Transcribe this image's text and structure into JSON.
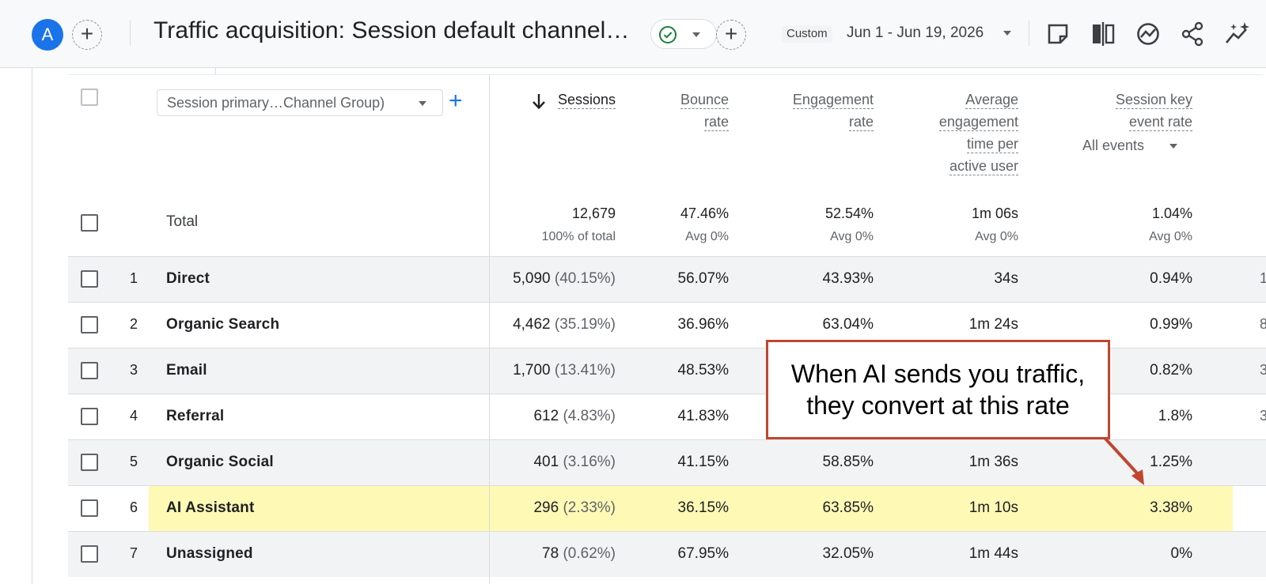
{
  "topbar": {
    "avatar_letter": "A",
    "add_comparison": "+",
    "report_title": "Traffic acquisition: Session default channel…",
    "add_button": "+",
    "date_chip": "Custom",
    "date_range": "Jun 1 - Jun 19, 2026"
  },
  "table": {
    "dimension_select": "Session primary…Channel Group)",
    "add_dimension": "+",
    "all_events": "All events",
    "columns": [
      {
        "lines": [
          "Sessions"
        ]
      },
      {
        "lines": [
          "Bounce",
          "rate"
        ]
      },
      {
        "lines": [
          "Engagement",
          "rate"
        ]
      },
      {
        "lines": [
          "Average",
          "engagement",
          "time per",
          "active user"
        ]
      },
      {
        "lines": [
          "Session key",
          "event rate"
        ]
      }
    ],
    "total": {
      "label": "Total",
      "values": [
        "12,679",
        "47.46%",
        "52.54%",
        "1m 06s",
        "1.04%"
      ],
      "subs": [
        "100% of total",
        "Avg 0%",
        "Avg 0%",
        "Avg 0%",
        "Avg 0%"
      ]
    },
    "rows": [
      {
        "num": "1",
        "channel": "Direct",
        "sessions": "5,090",
        "sessions_pct": "(40.15%)",
        "bounce": "56.07%",
        "engagement": "43.93%",
        "avg_time": "34s",
        "key_rate": "0.94%",
        "edge": "1"
      },
      {
        "num": "2",
        "channel": "Organic Search",
        "sessions": "4,462",
        "sessions_pct": "(35.19%)",
        "bounce": "36.96%",
        "engagement": "63.04%",
        "avg_time": "1m 24s",
        "key_rate": "0.99%",
        "edge": "8"
      },
      {
        "num": "3",
        "channel": "Email",
        "sessions": "1,700",
        "sessions_pct": "(13.41%)",
        "bounce": "48.53%",
        "engagement": "",
        "avg_time": "",
        "key_rate": "0.82%",
        "edge": "3"
      },
      {
        "num": "4",
        "channel": "Referral",
        "sessions": "612",
        "sessions_pct": "(4.83%)",
        "bounce": "41.83%",
        "engagement": "",
        "avg_time": "",
        "key_rate": "1.8%",
        "edge": "3"
      },
      {
        "num": "5",
        "channel": "Organic Social",
        "sessions": "401",
        "sessions_pct": "(3.16%)",
        "bounce": "41.15%",
        "engagement": "58.85%",
        "avg_time": "1m 36s",
        "key_rate": "1.25%",
        "edge": ""
      },
      {
        "num": "6",
        "channel": "AI Assistant",
        "sessions": "296",
        "sessions_pct": "(2.33%)",
        "bounce": "36.15%",
        "engagement": "63.85%",
        "avg_time": "1m 10s",
        "key_rate": "3.38%",
        "edge": ""
      },
      {
        "num": "7",
        "channel": "Unassigned",
        "sessions": "78",
        "sessions_pct": "(0.62%)",
        "bounce": "67.95%",
        "engagement": "32.05%",
        "avg_time": "1m 44s",
        "key_rate": "0%",
        "edge": ""
      }
    ]
  },
  "callout": {
    "line1": "When AI sends you traffic,",
    "line2": "they convert at this rate"
  },
  "colors": {
    "highlight": "#fef9b5",
    "callout_border": "#c0462f",
    "accent": "#1a73e8",
    "success": "#188038"
  }
}
